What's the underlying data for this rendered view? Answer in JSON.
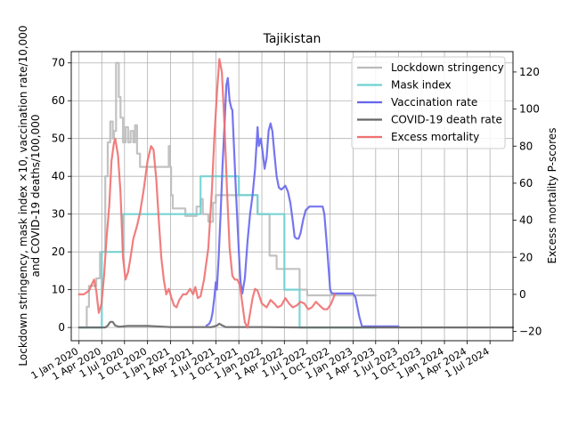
{
  "chart_data": {
    "type": "line",
    "title": "Tajikistan",
    "ylabel_left": "Lockdown stringency, mask index ×10, vaccination rate/10,000\nand COVID-19 deaths/100,000",
    "ylabel_right": "Excess mortality P-scores",
    "xlabel": "",
    "xlim": [
      "2019-12-01",
      "2024-10-01"
    ],
    "ylim_left": [
      -3.5,
      73
    ],
    "ylim_right": [
      -25,
      131
    ],
    "yticks_left": [
      0,
      10,
      20,
      30,
      40,
      50,
      60,
      70
    ],
    "yticks_right": [
      -20,
      0,
      20,
      40,
      60,
      80,
      100,
      120
    ],
    "xticks": [
      {
        "date": "2020-01-01",
        "label": "1 Jan 2020"
      },
      {
        "date": "2020-04-01",
        "label": "1 Apr 2020"
      },
      {
        "date": "2020-07-01",
        "label": "1 Jul 2020"
      },
      {
        "date": "2020-10-01",
        "label": "1 Oct 2020"
      },
      {
        "date": "2021-01-01",
        "label": "1 Jan 2021"
      },
      {
        "date": "2021-04-01",
        "label": "1 Apr 2021"
      },
      {
        "date": "2021-07-01",
        "label": "1 Jul 2021"
      },
      {
        "date": "2021-10-01",
        "label": "1 Oct 2021"
      },
      {
        "date": "2022-01-01",
        "label": "1 Jan 2022"
      },
      {
        "date": "2022-04-01",
        "label": "1 Apr 2022"
      },
      {
        "date": "2022-07-01",
        "label": "1 Jul 2022"
      },
      {
        "date": "2022-10-01",
        "label": "1 Oct 2022"
      },
      {
        "date": "2023-01-01",
        "label": "1 Jan 2023"
      },
      {
        "date": "2023-04-01",
        "label": "1 Apr 2023"
      },
      {
        "date": "2023-07-01",
        "label": "1 Jul 2023"
      },
      {
        "date": "2023-10-01",
        "label": "1 Oct 2023"
      },
      {
        "date": "2024-01-01",
        "label": "1 Jan 2024"
      },
      {
        "date": "2024-04-01",
        "label": "1 Apr 2024"
      },
      {
        "date": "2024-07-01",
        "label": "1 Jul 2024"
      }
    ],
    "grid": true,
    "legend_position": "top-right",
    "series": [
      {
        "name": "Lockdown stringency",
        "color": "#bbbbbb",
        "axis": "left",
        "step": true,
        "points": [
          [
            "2020-01-01",
            0
          ],
          [
            "2020-02-01",
            5.5
          ],
          [
            "2020-02-10",
            11
          ],
          [
            "2020-03-10",
            13
          ],
          [
            "2020-03-25",
            20
          ],
          [
            "2020-04-15",
            40
          ],
          [
            "2020-04-25",
            49
          ],
          [
            "2020-05-05",
            54.5
          ],
          [
            "2020-05-15",
            50
          ],
          [
            "2020-05-20",
            52
          ],
          [
            "2020-05-28",
            70
          ],
          [
            "2020-06-08",
            61
          ],
          [
            "2020-06-15",
            55.5
          ],
          [
            "2020-06-25",
            49
          ],
          [
            "2020-07-05",
            53
          ],
          [
            "2020-07-15",
            49
          ],
          [
            "2020-07-25",
            52
          ],
          [
            "2020-08-05",
            49
          ],
          [
            "2020-08-12",
            53.5
          ],
          [
            "2020-08-20",
            46
          ],
          [
            "2020-09-01",
            42.5
          ],
          [
            "2020-10-01",
            42.5
          ],
          [
            "2020-12-25",
            48
          ],
          [
            "2020-12-30",
            42.5
          ],
          [
            "2021-01-03",
            35
          ],
          [
            "2021-01-10",
            31.5
          ],
          [
            "2021-03-01",
            29.5
          ],
          [
            "2021-04-15",
            32
          ],
          [
            "2021-05-01",
            34
          ],
          [
            "2021-05-10",
            30
          ],
          [
            "2021-06-01",
            28
          ],
          [
            "2021-06-20",
            33
          ],
          [
            "2021-07-01",
            35
          ],
          [
            "2021-12-15",
            30
          ],
          [
            "2022-02-01",
            19
          ],
          [
            "2022-03-01",
            15.5
          ],
          [
            "2022-06-01",
            10
          ],
          [
            "2022-07-01",
            8.5
          ],
          [
            "2023-04-01",
            8.5
          ]
        ]
      },
      {
        "name": "Mask index",
        "color": "#6fd1d1",
        "axis": "left",
        "step": true,
        "points": [
          [
            "2020-01-01",
            0
          ],
          [
            "2020-04-01",
            20
          ],
          [
            "2020-06-25",
            30
          ],
          [
            "2021-05-01",
            40
          ],
          [
            "2021-10-01",
            35
          ],
          [
            "2021-12-15",
            30
          ],
          [
            "2022-04-01",
            10
          ],
          [
            "2022-06-01",
            0
          ],
          [
            "2023-04-01",
            0
          ]
        ]
      },
      {
        "name": "Vaccination rate",
        "color": "#6666ee",
        "axis": "left",
        "points": [
          [
            "2021-05-25",
            0.5
          ],
          [
            "2021-06-05",
            1
          ],
          [
            "2021-06-12",
            2
          ],
          [
            "2021-06-18",
            4
          ],
          [
            "2021-06-25",
            8
          ],
          [
            "2021-07-01",
            12
          ],
          [
            "2021-07-05",
            10
          ],
          [
            "2021-07-12",
            18
          ],
          [
            "2021-07-20",
            30
          ],
          [
            "2021-07-28",
            43
          ],
          [
            "2021-08-05",
            54
          ],
          [
            "2021-08-12",
            64
          ],
          [
            "2021-08-18",
            66
          ],
          [
            "2021-08-25",
            60
          ],
          [
            "2021-09-01",
            58
          ],
          [
            "2021-09-05",
            57.5
          ],
          [
            "2021-09-10",
            50
          ],
          [
            "2021-09-20",
            35
          ],
          [
            "2021-10-01",
            20
          ],
          [
            "2021-10-08",
            12
          ],
          [
            "2021-10-15",
            9
          ],
          [
            "2021-10-25",
            13
          ],
          [
            "2021-11-05",
            23
          ],
          [
            "2021-11-15",
            30
          ],
          [
            "2021-11-25",
            35
          ],
          [
            "2021-12-05",
            42
          ],
          [
            "2021-12-15",
            53
          ],
          [
            "2021-12-20",
            48
          ],
          [
            "2021-12-28",
            50
          ],
          [
            "2022-01-05",
            46
          ],
          [
            "2022-01-12",
            42
          ],
          [
            "2022-01-20",
            45
          ],
          [
            "2022-01-28",
            52
          ],
          [
            "2022-02-05",
            54
          ],
          [
            "2022-02-12",
            52
          ],
          [
            "2022-02-20",
            46
          ],
          [
            "2022-03-01",
            40
          ],
          [
            "2022-03-10",
            37
          ],
          [
            "2022-03-20",
            36.5
          ],
          [
            "2022-03-28",
            37
          ],
          [
            "2022-04-05",
            37.5
          ],
          [
            "2022-04-15",
            36
          ],
          [
            "2022-04-25",
            33
          ],
          [
            "2022-05-05",
            28
          ],
          [
            "2022-05-12",
            24
          ],
          [
            "2022-05-20",
            23.5
          ],
          [
            "2022-05-28",
            23.5
          ],
          [
            "2022-06-05",
            25
          ],
          [
            "2022-06-15",
            28.5
          ],
          [
            "2022-06-25",
            31
          ],
          [
            "2022-07-10",
            32
          ],
          [
            "2022-08-01",
            32
          ],
          [
            "2022-09-01",
            32
          ],
          [
            "2022-09-08",
            30
          ],
          [
            "2022-09-20",
            20
          ],
          [
            "2022-10-01",
            10
          ],
          [
            "2022-10-08",
            9
          ],
          [
            "2022-11-01",
            9
          ],
          [
            "2023-01-01",
            9
          ],
          [
            "2023-01-10",
            8
          ],
          [
            "2023-01-25",
            3
          ],
          [
            "2023-02-05",
            0.3
          ],
          [
            "2023-06-01",
            0.3
          ],
          [
            "2023-07-01",
            0.3
          ]
        ]
      },
      {
        "name": "COVID-19 death rate",
        "color": "#666666",
        "axis": "left",
        "points": [
          [
            "2020-01-01",
            0
          ],
          [
            "2020-04-15",
            0
          ],
          [
            "2020-04-25",
            0.5
          ],
          [
            "2020-05-05",
            1.5
          ],
          [
            "2020-05-15",
            1.5
          ],
          [
            "2020-05-25",
            0.5
          ],
          [
            "2020-06-10",
            0.2
          ],
          [
            "2020-07-15",
            0.4
          ],
          [
            "2020-10-01",
            0.4
          ],
          [
            "2021-01-01",
            0.1
          ],
          [
            "2021-06-15",
            0.1
          ],
          [
            "2021-07-05",
            0.5
          ],
          [
            "2021-07-15",
            1
          ],
          [
            "2021-07-25",
            0.6
          ],
          [
            "2021-08-10",
            0.1
          ],
          [
            "2022-01-01",
            0.1
          ],
          [
            "2022-06-01",
            0
          ],
          [
            "2024-10-01",
            0
          ]
        ]
      },
      {
        "name": "Excess mortality",
        "color": "#f07070",
        "axis": "right",
        "points": [
          [
            "2020-01-01",
            0
          ],
          [
            "2020-01-20",
            0
          ],
          [
            "2020-02-10",
            2
          ],
          [
            "2020-02-20",
            5
          ],
          [
            "2020-03-01",
            8
          ],
          [
            "2020-03-10",
            2
          ],
          [
            "2020-03-20",
            -10
          ],
          [
            "2020-03-31",
            -5
          ],
          [
            "2020-04-10",
            10
          ],
          [
            "2020-04-20",
            30
          ],
          [
            "2020-05-01",
            48
          ],
          [
            "2020-05-10",
            72
          ],
          [
            "2020-05-20",
            82
          ],
          [
            "2020-05-25",
            84
          ],
          [
            "2020-06-05",
            75
          ],
          [
            "2020-06-15",
            55
          ],
          [
            "2020-06-25",
            20
          ],
          [
            "2020-07-05",
            8
          ],
          [
            "2020-07-15",
            12
          ],
          [
            "2020-07-25",
            20
          ],
          [
            "2020-08-05",
            30
          ],
          [
            "2020-08-20",
            37
          ],
          [
            "2020-09-01",
            44
          ],
          [
            "2020-09-15",
            56
          ],
          [
            "2020-10-01",
            72
          ],
          [
            "2020-10-15",
            80
          ],
          [
            "2020-10-25",
            78
          ],
          [
            "2020-11-05",
            62
          ],
          [
            "2020-11-15",
            40
          ],
          [
            "2020-11-25",
            20
          ],
          [
            "2020-12-05",
            8
          ],
          [
            "2020-12-15",
            0
          ],
          [
            "2020-12-25",
            3
          ],
          [
            "2021-01-05",
            -2
          ],
          [
            "2021-01-15",
            -6
          ],
          [
            "2021-01-25",
            -7
          ],
          [
            "2021-02-05",
            -3
          ],
          [
            "2021-02-20",
            0
          ],
          [
            "2021-03-05",
            0
          ],
          [
            "2021-03-20",
            3
          ],
          [
            "2021-04-01",
            0
          ],
          [
            "2021-04-10",
            4
          ],
          [
            "2021-04-20",
            -2
          ],
          [
            "2021-05-01",
            -1
          ],
          [
            "2021-05-15",
            8
          ],
          [
            "2021-06-01",
            25
          ],
          [
            "2021-06-15",
            55
          ],
          [
            "2021-06-25",
            85
          ],
          [
            "2021-07-05",
            108
          ],
          [
            "2021-07-15",
            127
          ],
          [
            "2021-07-25",
            120
          ],
          [
            "2021-08-05",
            90
          ],
          [
            "2021-08-15",
            55
          ],
          [
            "2021-08-25",
            25
          ],
          [
            "2021-09-05",
            10
          ],
          [
            "2021-09-15",
            8
          ],
          [
            "2021-09-25",
            8
          ],
          [
            "2021-10-05",
            5
          ],
          [
            "2021-10-15",
            -5
          ],
          [
            "2021-10-25",
            -15
          ],
          [
            "2021-11-05",
            -18
          ],
          [
            "2021-11-15",
            -10
          ],
          [
            "2021-11-25",
            -2
          ],
          [
            "2021-12-05",
            3
          ],
          [
            "2021-12-15",
            2
          ],
          [
            "2022-01-01",
            -5
          ],
          [
            "2022-01-20",
            -7
          ],
          [
            "2022-02-05",
            -3
          ],
          [
            "2022-02-20",
            -5
          ],
          [
            "2022-03-05",
            -7
          ],
          [
            "2022-03-20",
            -6
          ],
          [
            "2022-04-05",
            -2
          ],
          [
            "2022-04-20",
            -5
          ],
          [
            "2022-05-05",
            -7
          ],
          [
            "2022-05-20",
            -6
          ],
          [
            "2022-06-05",
            -4
          ],
          [
            "2022-06-20",
            -5
          ],
          [
            "2022-07-05",
            -8
          ],
          [
            "2022-07-20",
            -7
          ],
          [
            "2022-08-05",
            -4
          ],
          [
            "2022-08-20",
            -6
          ],
          [
            "2022-09-05",
            -8
          ],
          [
            "2022-09-20",
            -8
          ],
          [
            "2022-10-05",
            -5
          ],
          [
            "2022-10-20",
            0
          ]
        ]
      }
    ]
  }
}
